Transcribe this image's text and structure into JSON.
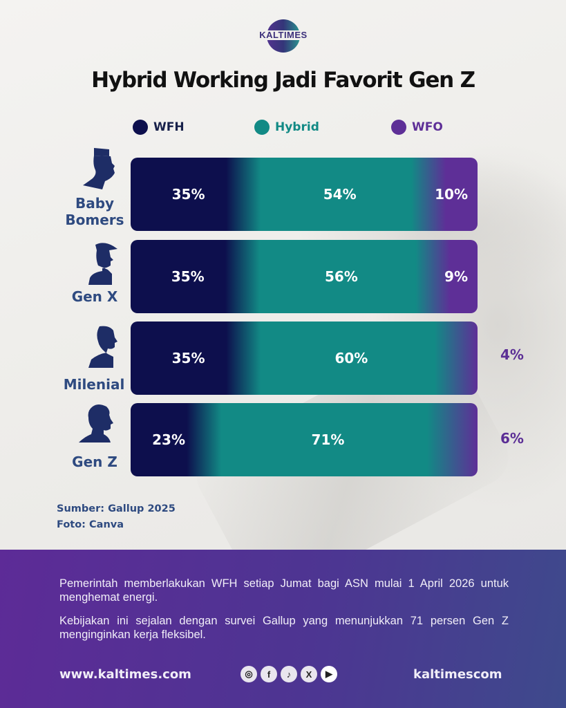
{
  "brand": {
    "logo_text": "KALTIMES"
  },
  "colors": {
    "wfh": "#0d0f4d",
    "hybrid": "#128a85",
    "wfo": "#5e2f97",
    "label": "#2e4a80"
  },
  "chart_data": {
    "type": "bar",
    "orientation": "horizontal-stacked",
    "title": "Hybrid Working Jadi Favorit Gen Z",
    "legend": [
      "WFH",
      "Hybrid",
      "WFO"
    ],
    "legend_position": "top",
    "categories": [
      "Baby Bomers",
      "Gen X",
      "Milenial",
      "Gen Z"
    ],
    "series": [
      {
        "name": "WFH",
        "values": [
          35,
          35,
          35,
          23
        ]
      },
      {
        "name": "Hybrid",
        "values": [
          54,
          56,
          60,
          71
        ]
      },
      {
        "name": "WFO",
        "values": [
          10,
          9,
          4,
          6
        ]
      }
    ],
    "data_labels": [
      {
        "wfh": "35%",
        "hybrid": "54%",
        "wfo": "10%"
      },
      {
        "wfh": "35%",
        "hybrid": "56%",
        "wfo": "9%"
      },
      {
        "wfh": "35%",
        "hybrid": "60%",
        "wfo": "4%"
      },
      {
        "wfh": "23%",
        "hybrid": "71%",
        "wfo": "6%"
      }
    ],
    "unit": "%"
  },
  "legend": [
    {
      "label": "WFH",
      "icon": "dot-icon"
    },
    {
      "label": "Hybrid",
      "icon": "dot-icon"
    },
    {
      "label": "WFO",
      "icon": "dot-icon"
    }
  ],
  "rows": [
    {
      "label_lines": [
        "Baby",
        "Bomers"
      ],
      "avatar": "elderly-man-kopiah-silhouette-icon"
    },
    {
      "label_lines": [
        "Gen X"
      ],
      "avatar": "man-flat-cap-silhouette-icon"
    },
    {
      "label_lines": [
        "Milenial"
      ],
      "avatar": "young-man-silhouette-icon"
    },
    {
      "label_lines": [
        "Gen Z"
      ],
      "avatar": "teen-silhouette-icon"
    }
  ],
  "source": {
    "line1": "Sumber:  Gallup 2025",
    "line2": "Foto: Canva"
  },
  "footer": {
    "paragraphs": [
      "Pemerintah memberlakukan WFH setiap Jumat bagi ASN mulai 1 April 2026 untuk menghemat energi.",
      "Kebijakan ini sejalan dengan survei Gallup yang menunjukkan 71 persen Gen Z menginginkan kerja fleksibel."
    ],
    "website": "www.kaltimes.com",
    "handle": "kaltimescom",
    "socials": [
      {
        "name": "instagram-icon",
        "glyph": "◎"
      },
      {
        "name": "facebook-icon",
        "glyph": "f"
      },
      {
        "name": "tiktok-icon",
        "glyph": "♪"
      },
      {
        "name": "x-icon",
        "glyph": "X"
      },
      {
        "name": "youtube-icon",
        "glyph": "▶"
      }
    ]
  }
}
